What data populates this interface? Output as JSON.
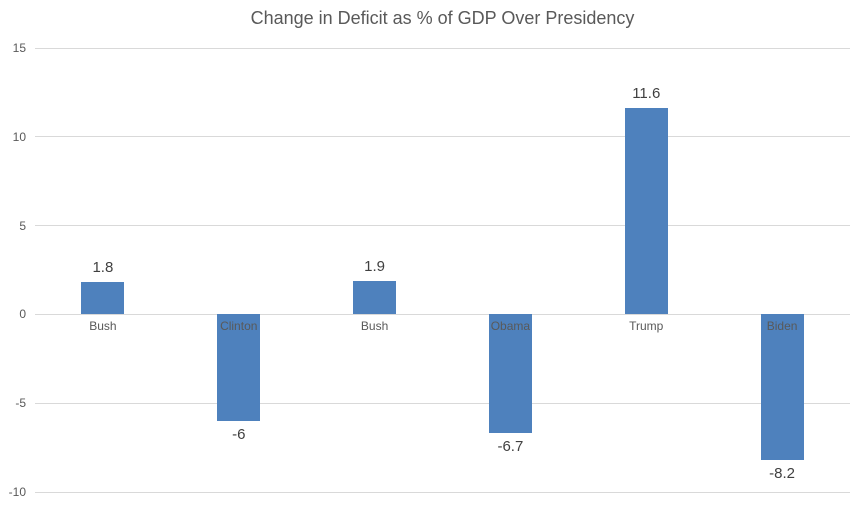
{
  "chart_data": {
    "type": "bar",
    "title": "Change in Deficit as % of GDP Over Presidency",
    "categories": [
      "Bush",
      "Clinton",
      "Bush",
      "Obama",
      "Trump",
      "Biden"
    ],
    "values": [
      1.8,
      -6,
      1.9,
      -6.7,
      11.6,
      -8.2
    ],
    "value_labels": [
      "1.8",
      "-6",
      "1.9",
      "-6.7",
      "11.6",
      "-8.2"
    ],
    "yticks": [
      15,
      10,
      5,
      0,
      -5,
      -10
    ],
    "ylim": [
      -10,
      15
    ],
    "xlabel": "",
    "ylabel": "",
    "grid": true,
    "legend": false,
    "colors": {
      "bar": "#4E81BD",
      "gridline": "#D9D9D9",
      "axis_labels": "#595959",
      "data_labels": "#404040",
      "title": "#595959",
      "background": "#FFFFFF"
    }
  }
}
